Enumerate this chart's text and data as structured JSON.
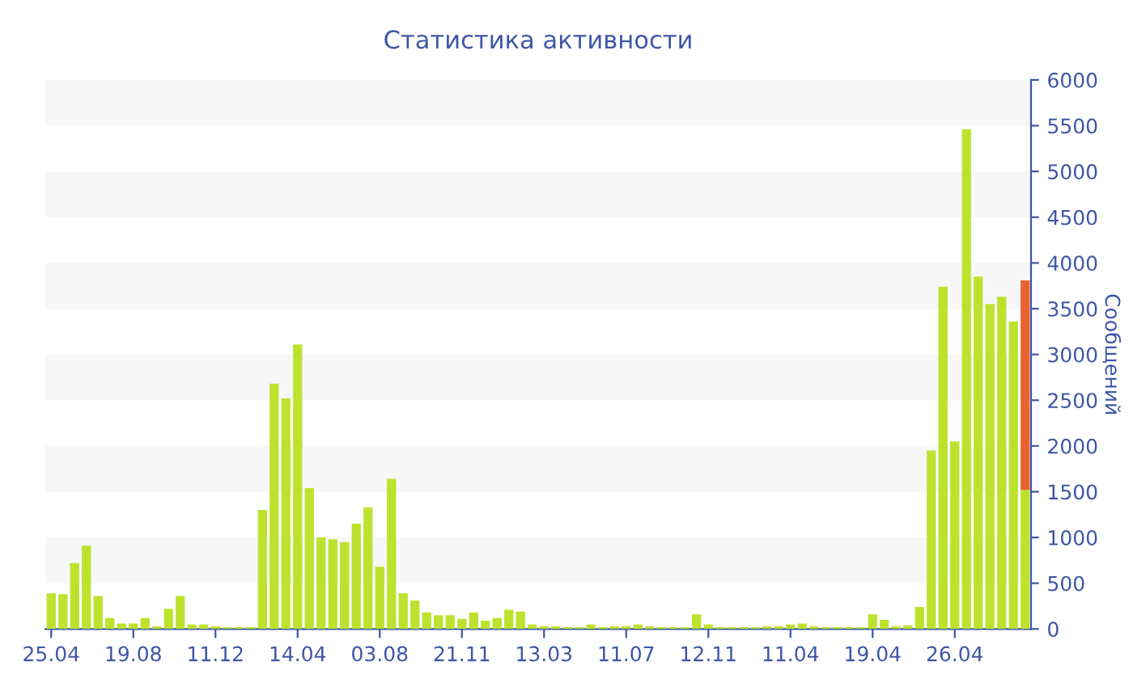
{
  "chart_data": {
    "type": "bar",
    "title": "Статистика активности",
    "ylabel": "Сообщений",
    "categories": [
      "25.04",
      null,
      null,
      null,
      null,
      null,
      null,
      "19.08",
      null,
      null,
      null,
      null,
      null,
      null,
      "11.12",
      null,
      null,
      null,
      null,
      null,
      null,
      "14.04",
      null,
      null,
      null,
      null,
      null,
      null,
      "03.08",
      null,
      null,
      null,
      null,
      null,
      null,
      "21.11",
      null,
      null,
      null,
      null,
      null,
      null,
      "13.03",
      null,
      null,
      null,
      null,
      null,
      null,
      "11.07",
      null,
      null,
      null,
      null,
      null,
      null,
      "12.11",
      null,
      null,
      null,
      null,
      null,
      null,
      "11.04",
      null,
      null,
      null,
      null,
      null,
      null,
      "19.04",
      null,
      null,
      null,
      null,
      null,
      null,
      "26.04",
      null,
      null,
      null,
      null,
      null,
      null
    ],
    "series": [
      {
        "color": "#bde22e",
        "values": [
          390,
          380,
          720,
          910,
          360,
          120,
          60,
          60,
          120,
          30,
          220,
          360,
          50,
          50,
          30,
          20,
          20,
          20,
          1300,
          2680,
          2520,
          3110,
          1540,
          1000,
          980,
          950,
          1150,
          1330,
          680,
          1640,
          390,
          310,
          180,
          150,
          150,
          110,
          180,
          90,
          120,
          210,
          190,
          50,
          30,
          30,
          20,
          20,
          50,
          20,
          30,
          30,
          50,
          30,
          20,
          20,
          20,
          160,
          50,
          20,
          20,
          20,
          20,
          30,
          30,
          50,
          60,
          30,
          20,
          20,
          20,
          20,
          160,
          100,
          30,
          40,
          240,
          1950,
          3740,
          2050,
          5460,
          3850,
          3550,
          3630,
          3360,
          1520
        ]
      },
      {
        "color": "#e8632f",
        "values": [
          null,
          null,
          null,
          null,
          null,
          null,
          null,
          null,
          null,
          null,
          null,
          null,
          null,
          null,
          null,
          null,
          null,
          null,
          null,
          null,
          null,
          null,
          null,
          null,
          null,
          null,
          null,
          null,
          null,
          null,
          null,
          null,
          null,
          null,
          null,
          null,
          null,
          null,
          null,
          null,
          null,
          null,
          null,
          null,
          null,
          null,
          null,
          null,
          null,
          null,
          null,
          null,
          null,
          null,
          null,
          null,
          null,
          null,
          null,
          null,
          null,
          null,
          null,
          null,
          null,
          null,
          null,
          null,
          null,
          null,
          null,
          null,
          null,
          null,
          null,
          null,
          null,
          null,
          null,
          null,
          null,
          null,
          null,
          2290
        ]
      }
    ],
    "stacked": true,
    "ylim": [
      0,
      6000
    ],
    "yticks": [
      0,
      500,
      1000,
      1500,
      2000,
      2500,
      3000,
      3500,
      4000,
      4500,
      5000,
      5500,
      6000
    ],
    "grid": false
  }
}
